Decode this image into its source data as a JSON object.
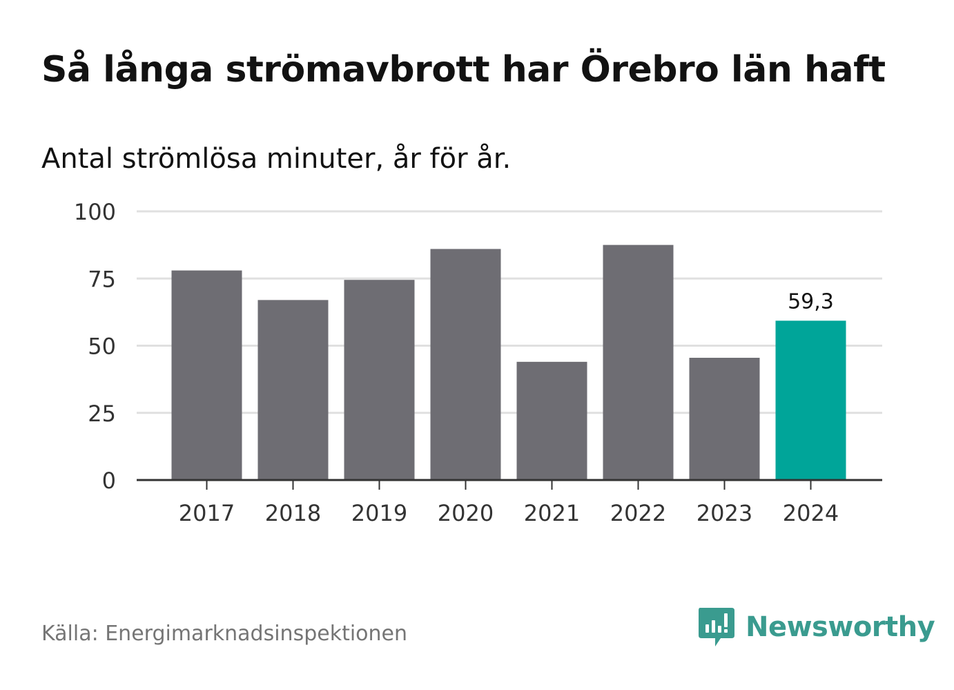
{
  "title": "Så långa strömavbrott har Örebro län haft",
  "subtitle": "Antal strömlösa minuter, år för år.",
  "source": "Källa: Energimarknadsinspektionen",
  "brand": "Newsworthy",
  "colors": {
    "bar": "#6e6d73",
    "highlight": "#00a599",
    "grid": "#e0e0e0",
    "axis": "#333333",
    "brand": "#3a9b8f"
  },
  "chart_data": {
    "type": "bar",
    "title": "Så långa strömavbrott har Örebro län haft",
    "subtitle": "Antal strömlösa minuter, år för år.",
    "xlabel": "",
    "ylabel": "",
    "categories": [
      "2017",
      "2018",
      "2019",
      "2020",
      "2021",
      "2022",
      "2023",
      "2024"
    ],
    "values": [
      78,
      67,
      74.5,
      86,
      44,
      87.5,
      45.5,
      59.3
    ],
    "highlight_index": 7,
    "highlight_label": "59,3",
    "ylim": [
      0,
      100
    ],
    "yticks": [
      0,
      25,
      50,
      75,
      100
    ],
    "grid": true
  }
}
